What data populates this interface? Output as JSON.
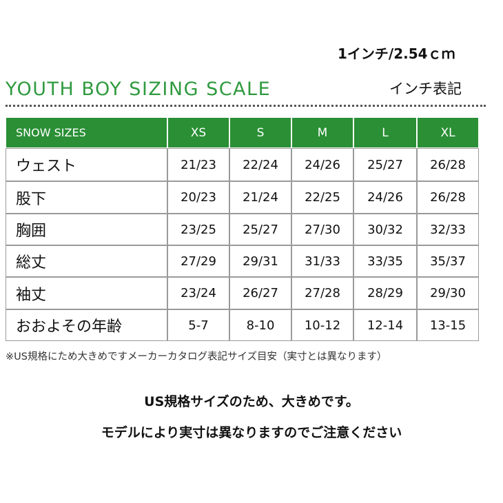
{
  "header": {
    "unit_note": "1インチ/2.54ｃｍ",
    "title": "YOUTH BOY SIZING SCALE",
    "unit_label": "インチ表記"
  },
  "table": {
    "columns": [
      "SNOW SIZES",
      "XS",
      "S",
      "M",
      "L",
      "XL"
    ],
    "rows": [
      [
        "ウェスト",
        "21/23",
        "22/24",
        "24/26",
        "25/27",
        "26/28"
      ],
      [
        "股下",
        "20/23",
        "21/24",
        "22/25",
        "24/26",
        "26/28"
      ],
      [
        "胸囲",
        "23/25",
        "25/27",
        "27/30",
        "30/32",
        "32/33"
      ],
      [
        "総丈",
        "27/29",
        "29/31",
        "31/33",
        "33/35",
        "35/37"
      ],
      [
        "袖丈",
        "23/24",
        "26/27",
        "27/28",
        "28/29",
        "29/30"
      ],
      [
        "おおよその年齢",
        "5-7",
        "8-10",
        "10-12",
        "12-14",
        "13-15"
      ]
    ]
  },
  "footnote": "※US規格にため大きめですメーカーカタログ表記サイズ目安（実寸とは異なります）",
  "notes": [
    "US規格サイズのため、大きめです。",
    "モデルにより実寸は異なりますのでご注意ください"
  ]
}
